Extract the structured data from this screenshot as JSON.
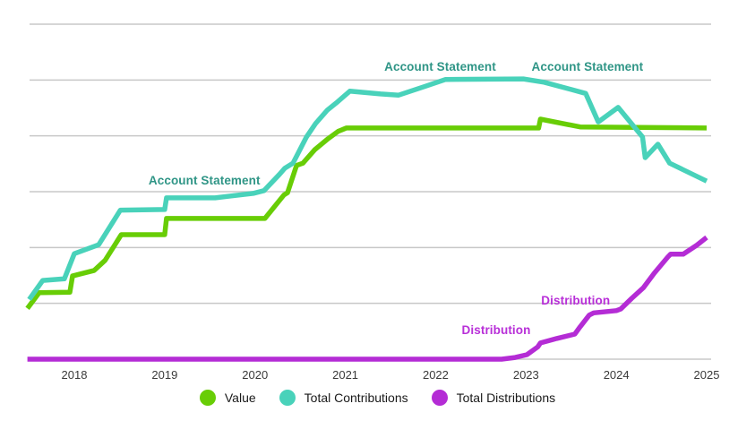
{
  "chart_data": {
    "type": "line",
    "title": "",
    "grid": {
      "show": true,
      "color": "#c8c8c8",
      "horizontal_lines": [
        0,
        1,
        2,
        3,
        4,
        5,
        6
      ]
    },
    "x_axis": {
      "tick_labels": [
        "2018",
        "2019",
        "2020",
        "2021",
        "2022",
        "2023",
        "2024",
        "2025"
      ],
      "tick_values": [
        2018,
        2019,
        2020,
        2021,
        2022,
        2023,
        2024,
        2025
      ],
      "range": [
        2017.45,
        2025.05
      ]
    },
    "y_axis": {
      "tick_labels": [],
      "range_gridline_units": [
        0,
        6
      ]
    },
    "series": [
      {
        "name": "Value",
        "color": "#68cd06",
        "points": [
          [
            2017.48,
            0.91
          ],
          [
            2017.61,
            1.19
          ],
          [
            2017.95,
            1.2
          ],
          [
            2017.98,
            1.49
          ],
          [
            2018.22,
            1.59
          ],
          [
            2018.34,
            1.77
          ],
          [
            2018.52,
            2.23
          ],
          [
            2019.0,
            2.23
          ],
          [
            2019.02,
            2.52
          ],
          [
            2020.11,
            2.52
          ],
          [
            2020.32,
            2.94
          ],
          [
            2020.36,
            2.98
          ],
          [
            2020.46,
            3.47
          ],
          [
            2020.53,
            3.51
          ],
          [
            2020.66,
            3.75
          ],
          [
            2020.81,
            3.95
          ],
          [
            2020.92,
            4.08
          ],
          [
            2021.01,
            4.14
          ],
          [
            2023.14,
            4.14
          ],
          [
            2023.16,
            4.3
          ],
          [
            2023.6,
            4.16
          ],
          [
            2025.0,
            4.14
          ]
        ]
      },
      {
        "name": "Total Contributions",
        "color": "#49d2ba",
        "points": [
          [
            2017.5,
            1.07
          ],
          [
            2017.65,
            1.41
          ],
          [
            2017.89,
            1.44
          ],
          [
            2018.0,
            1.89
          ],
          [
            2018.22,
            2.02
          ],
          [
            2018.27,
            2.05
          ],
          [
            2018.51,
            2.67
          ],
          [
            2019.0,
            2.68
          ],
          [
            2019.02,
            2.89
          ],
          [
            2019.56,
            2.89
          ],
          [
            2019.98,
            2.97
          ],
          [
            2020.1,
            3.02
          ],
          [
            2020.27,
            3.31
          ],
          [
            2020.33,
            3.42
          ],
          [
            2020.42,
            3.51
          ],
          [
            2020.57,
            3.98
          ],
          [
            2020.67,
            4.22
          ],
          [
            2020.8,
            4.46
          ],
          [
            2020.9,
            4.59
          ],
          [
            2021.05,
            4.8
          ],
          [
            2021.39,
            4.75
          ],
          [
            2021.59,
            4.73
          ],
          [
            2021.89,
            4.89
          ],
          [
            2022.11,
            5.01
          ],
          [
            2022.97,
            5.02
          ],
          [
            2023.2,
            4.96
          ],
          [
            2023.5,
            4.83
          ],
          [
            2023.66,
            4.76
          ],
          [
            2023.8,
            4.25
          ],
          [
            2024.02,
            4.51
          ],
          [
            2024.29,
            3.98
          ],
          [
            2024.32,
            3.61
          ],
          [
            2024.46,
            3.85
          ],
          [
            2024.59,
            3.51
          ],
          [
            2025.0,
            3.19
          ]
        ]
      },
      {
        "name": "Total Distributions",
        "color": "#b42cd5",
        "points": [
          [
            2017.48,
            0.0
          ],
          [
            2022.73,
            0.0
          ],
          [
            2022.88,
            0.03
          ],
          [
            2023.01,
            0.08
          ],
          [
            2023.13,
            0.22
          ],
          [
            2023.16,
            0.29
          ],
          [
            2023.34,
            0.37
          ],
          [
            2023.54,
            0.45
          ],
          [
            2023.6,
            0.58
          ],
          [
            2023.7,
            0.79
          ],
          [
            2023.75,
            0.83
          ],
          [
            2024.0,
            0.87
          ],
          [
            2024.05,
            0.9
          ],
          [
            2024.17,
            1.09
          ],
          [
            2024.3,
            1.28
          ],
          [
            2024.42,
            1.54
          ],
          [
            2024.57,
            1.83
          ],
          [
            2024.6,
            1.88
          ],
          [
            2024.74,
            1.88
          ],
          [
            2024.89,
            2.04
          ],
          [
            2025.0,
            2.18
          ]
        ]
      }
    ],
    "annotations": [
      {
        "text": "Account Statement",
        "color": "#2f9586",
        "x": 2019.44,
        "y": 3.08
      },
      {
        "text": "Account Statement",
        "color": "#2f9586",
        "x": 2022.05,
        "y": 5.12
      },
      {
        "text": "Account Statement",
        "color": "#2f9586",
        "x": 2023.68,
        "y": 5.12
      },
      {
        "text": "Distribution",
        "color": "#b82fd8",
        "x": 2022.67,
        "y": 0.4
      },
      {
        "text": "Distribution",
        "color": "#b82fd8",
        "x": 2023.55,
        "y": 0.93
      }
    ],
    "legend": {
      "position": "bottom",
      "items": [
        {
          "label": "Value",
          "color": "#68cd06"
        },
        {
          "label": "Total Contributions",
          "color": "#49d2ba"
        },
        {
          "label": "Total Distributions",
          "color": "#b42cd5"
        }
      ]
    }
  }
}
